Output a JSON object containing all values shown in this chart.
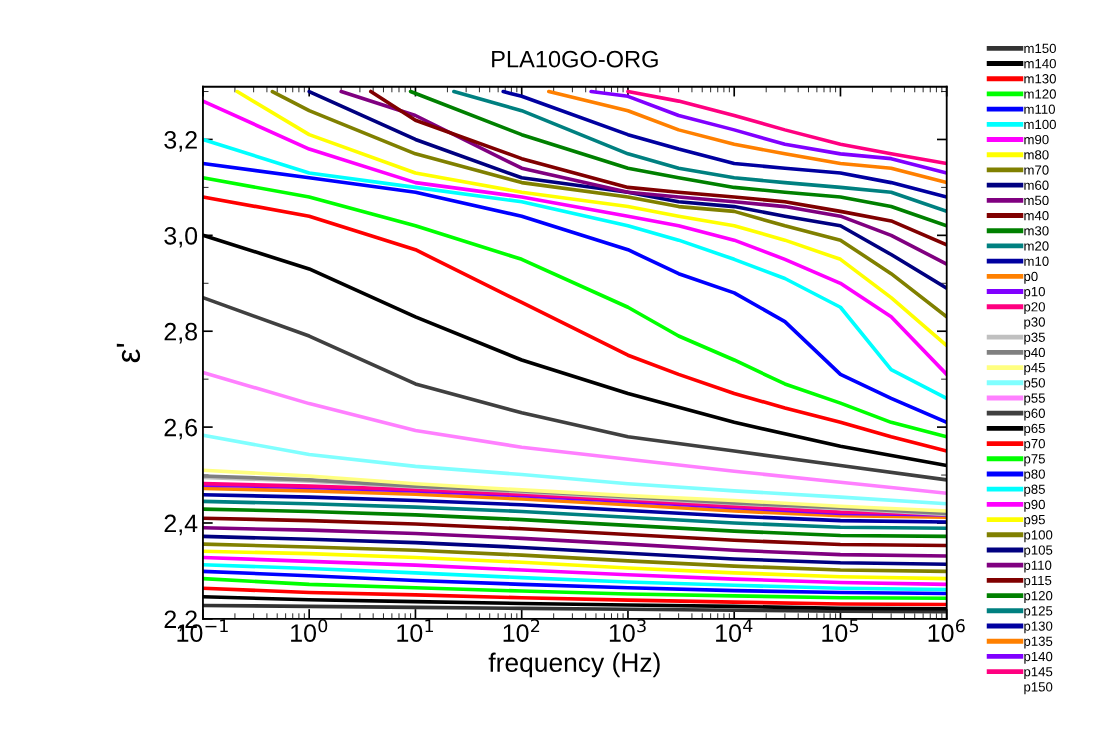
{
  "chart_data": {
    "type": "line",
    "title": "PLA10GO-ORG",
    "xlabel": "frequency (Hz)",
    "ylabel": "ε'",
    "log": "x",
    "grid": false,
    "legend": "right",
    "marker": "none",
    "line_style": "solid",
    "xlim": [
      0.1,
      1000000
    ],
    "ylim": [
      2.2,
      3.31
    ],
    "xticks": [
      {
        "value": 0.1,
        "label": "10$^{−1}$"
      },
      {
        "value": 1,
        "label": "10$^{0}$"
      },
      {
        "value": 10,
        "label": "10$^{1}$"
      },
      {
        "value": 100,
        "label": "10$^{2}$"
      },
      {
        "value": 1000,
        "label": "10$^{3}$"
      },
      {
        "value": 10000,
        "label": "10$^{4}$"
      },
      {
        "value": 100000,
        "label": "10$^{5}$"
      },
      {
        "value": 1000000,
        "label": "10$^{6}$"
      }
    ],
    "yticks": [
      {
        "value": 2.2,
        "label": "2,2"
      },
      {
        "value": 2.4,
        "label": "2,4"
      },
      {
        "value": 2.6,
        "label": "2,6"
      },
      {
        "value": 2.8,
        "label": "2,8"
      },
      {
        "value": 3.0,
        "label": "3,0"
      },
      {
        "value": 3.2,
        "label": "3,2"
      }
    ],
    "x": [
      0.1,
      1,
      10,
      100,
      1000,
      10000,
      100000,
      1000000
    ],
    "series": [
      {
        "name": "m150",
        "color": "#333333",
        "values": [
          2.228,
          2.226,
          2.224,
          2.222,
          2.22,
          2.218,
          2.216,
          2.215
        ]
      },
      {
        "name": "m140",
        "color": "#000000",
        "values": [
          2.246,
          2.24,
          2.236,
          2.232,
          2.229,
          2.226,
          2.222,
          2.221
        ]
      },
      {
        "name": "m130",
        "color": "#ff0000",
        "values": [
          2.264,
          2.255,
          2.25,
          2.244,
          2.239,
          2.235,
          2.231,
          2.23
        ]
      },
      {
        "name": "m120",
        "color": "#00ff00",
        "values": [
          2.284,
          2.272,
          2.265,
          2.258,
          2.252,
          2.248,
          2.244,
          2.243
        ]
      },
      {
        "name": "m110",
        "color": "#0000ff",
        "values": [
          2.299,
          2.29,
          2.28,
          2.272,
          2.265,
          2.259,
          2.255,
          2.253
        ]
      },
      {
        "name": "m100",
        "color": "#00ffff",
        "values": [
          2.313,
          2.305,
          2.296,
          2.286,
          2.277,
          2.27,
          2.264,
          2.261
        ]
      },
      {
        "name": "m90",
        "color": "#ff00ff",
        "values": [
          2.328,
          2.32,
          2.312,
          2.302,
          2.292,
          2.283,
          2.276,
          2.272
        ]
      },
      {
        "name": "m80",
        "color": "#ffff00",
        "values": [
          2.341,
          2.336,
          2.328,
          2.318,
          2.306,
          2.296,
          2.288,
          2.284
        ]
      },
      {
        "name": "m70",
        "color": "#808000",
        "values": [
          2.356,
          2.35,
          2.343,
          2.333,
          2.321,
          2.31,
          2.302,
          2.299
        ]
      },
      {
        "name": "m60",
        "color": "#000080",
        "values": [
          2.372,
          2.366,
          2.359,
          2.349,
          2.337,
          2.325,
          2.317,
          2.314
        ]
      },
      {
        "name": "m50",
        "color": "#800080",
        "values": [
          2.39,
          2.385,
          2.378,
          2.368,
          2.356,
          2.343,
          2.334,
          2.331
        ]
      },
      {
        "name": "m40",
        "color": "#800000",
        "values": [
          2.41,
          2.405,
          2.398,
          2.388,
          2.376,
          2.364,
          2.355,
          2.353
        ]
      },
      {
        "name": "m30",
        "color": "#008000",
        "values": [
          2.429,
          2.424,
          2.417,
          2.407,
          2.395,
          2.383,
          2.374,
          2.372
        ]
      },
      {
        "name": "m20",
        "color": "#008080",
        "values": [
          2.445,
          2.44,
          2.433,
          2.424,
          2.412,
          2.4,
          2.391,
          2.389
        ]
      },
      {
        "name": "m10",
        "color": "#0000a0",
        "values": [
          2.459,
          2.454,
          2.447,
          2.438,
          2.426,
          2.414,
          2.405,
          2.402
        ]
      },
      {
        "name": "p0",
        "color": "#ff8000",
        "values": [
          2.472,
          2.467,
          2.46,
          2.45,
          2.438,
          2.425,
          2.415,
          2.412
        ]
      },
      {
        "name": "p10",
        "color": "#8000ff",
        "values": [
          2.479,
          2.474,
          2.467,
          2.457,
          2.445,
          2.432,
          2.42,
          2.417
        ]
      },
      {
        "name": "p20",
        "color": "#ff0080",
        "values": [
          2.482,
          2.477,
          2.47,
          2.46,
          2.448,
          2.435,
          2.423,
          2.419
        ]
      },
      {
        "name": "p30",
        "values": [
          null,
          null,
          null,
          null,
          null,
          null,
          null,
          null
        ]
      },
      {
        "name": "p35",
        "color": "#c0c0c0",
        "values": [
          2.495,
          2.487,
          2.475,
          2.465,
          2.452,
          2.44,
          2.43,
          2.418
        ]
      },
      {
        "name": "p40",
        "color": "#808080",
        "values": [
          2.498,
          2.49,
          2.477,
          2.467,
          2.455,
          2.442,
          2.432,
          2.42
        ]
      },
      {
        "name": "p45",
        "color": "#ffff80",
        "values": [
          2.51,
          2.498,
          2.482,
          2.469,
          2.457,
          2.447,
          2.435,
          2.425
        ]
      },
      {
        "name": "p50",
        "color": "#80ffff",
        "values": [
          2.583,
          2.543,
          2.518,
          2.501,
          2.482,
          2.467,
          2.454,
          2.44
        ]
      },
      {
        "name": "p55",
        "color": "#ff80ff",
        "values": [
          2.714,
          2.649,
          2.593,
          2.558,
          2.533,
          2.508,
          2.485,
          2.462
        ]
      },
      {
        "name": "p60",
        "color": "#404040",
        "values": [
          2.87,
          2.79,
          2.69,
          2.63,
          2.58,
          2.55,
          2.52,
          2.49
        ]
      },
      {
        "name": "p65",
        "color": "#000000",
        "values": [
          3.0,
          2.93,
          2.83,
          2.74,
          2.67,
          2.61,
          2.56,
          2.52
        ]
      },
      {
        "name": "p70",
        "color": "#ff0000",
        "x": [
          0.1,
          1,
          10,
          100,
          1000,
          3000,
          10000,
          30000,
          100000,
          300000,
          1000000
        ],
        "values": [
          3.08,
          3.04,
          2.97,
          2.86,
          2.75,
          2.71,
          2.67,
          2.64,
          2.61,
          2.58,
          2.55
        ]
      },
      {
        "name": "p75",
        "color": "#00ff00",
        "x": [
          0.1,
          1,
          10,
          100,
          1000,
          3000,
          10000,
          30000,
          100000,
          300000,
          1000000
        ],
        "values": [
          3.12,
          3.08,
          3.02,
          2.95,
          2.85,
          2.79,
          2.74,
          2.69,
          2.65,
          2.61,
          2.58
        ]
      },
      {
        "name": "p80",
        "color": "#0000ff",
        "x": [
          0.1,
          1,
          10,
          100,
          1000,
          3000,
          10000,
          30000,
          100000,
          300000,
          1000000
        ],
        "values": [
          3.15,
          3.12,
          3.09,
          3.04,
          2.97,
          2.92,
          2.88,
          2.82,
          2.71,
          2.66,
          2.61
        ]
      },
      {
        "name": "p85",
        "color": "#00ffff",
        "x": [
          0.1,
          1,
          10,
          100,
          1000,
          3000,
          10000,
          30000,
          100000,
          300000,
          1000000
        ],
        "values": [
          3.2,
          3.13,
          3.1,
          3.07,
          3.02,
          2.99,
          2.95,
          2.91,
          2.85,
          2.72,
          2.66
        ]
      },
      {
        "name": "p90",
        "color": "#ff00ff",
        "x": [
          0.1,
          1,
          10,
          100,
          1000,
          3000,
          10000,
          30000,
          100000,
          300000,
          1000000
        ],
        "values": [
          3.28,
          3.18,
          3.11,
          3.08,
          3.04,
          3.02,
          2.99,
          2.95,
          2.9,
          2.83,
          2.71
        ]
      },
      {
        "name": "p95",
        "color": "#ffff00",
        "x": [
          0.21,
          1,
          10,
          100,
          1000,
          3000,
          10000,
          30000,
          100000,
          300000,
          1000000
        ],
        "values": [
          3.3,
          3.21,
          3.13,
          3.09,
          3.06,
          3.04,
          3.02,
          2.99,
          2.95,
          2.87,
          2.77
        ]
      },
      {
        "name": "p100",
        "color": "#808000",
        "x": [
          0.45,
          1,
          10,
          100,
          1000,
          3000,
          10000,
          30000,
          100000,
          300000,
          1000000
        ],
        "values": [
          3.3,
          3.26,
          3.17,
          3.11,
          3.08,
          3.06,
          3.05,
          3.02,
          2.99,
          2.92,
          2.83
        ]
      },
      {
        "name": "p105",
        "color": "#000080",
        "x": [
          1,
          10,
          100,
          1000,
          3000,
          10000,
          30000,
          100000,
          300000,
          1000000
        ],
        "values": [
          3.3,
          3.2,
          3.12,
          3.09,
          3.07,
          3.06,
          3.04,
          3.02,
          2.96,
          2.89
        ]
      },
      {
        "name": "p110",
        "color": "#800080",
        "x": [
          2,
          10,
          100,
          1000,
          3000,
          10000,
          30000,
          100000,
          300000,
          1000000
        ],
        "values": [
          3.3,
          3.25,
          3.14,
          3.09,
          3.08,
          3.07,
          3.06,
          3.04,
          3.0,
          2.94
        ]
      },
      {
        "name": "p115",
        "color": "#800000",
        "x": [
          3.8,
          10,
          100,
          1000,
          3000,
          10000,
          30000,
          100000,
          300000,
          1000000
        ],
        "values": [
          3.3,
          3.24,
          3.16,
          3.1,
          3.09,
          3.08,
          3.07,
          3.05,
          3.03,
          2.98
        ]
      },
      {
        "name": "p120",
        "color": "#008000",
        "x": [
          9,
          100,
          1000,
          3000,
          10000,
          30000,
          100000,
          300000,
          1000000
        ],
        "values": [
          3.3,
          3.21,
          3.14,
          3.12,
          3.1,
          3.09,
          3.08,
          3.06,
          3.02
        ]
      },
      {
        "name": "p125",
        "color": "#008080",
        "x": [
          23,
          100,
          1000,
          3000,
          10000,
          30000,
          100000,
          300000,
          1000000
        ],
        "values": [
          3.3,
          3.26,
          3.17,
          3.14,
          3.12,
          3.11,
          3.1,
          3.09,
          3.05
        ]
      },
      {
        "name": "p130",
        "color": "#0000a0",
        "x": [
          67,
          100,
          1000,
          3000,
          10000,
          30000,
          100000,
          300000,
          1000000
        ],
        "values": [
          3.3,
          3.29,
          3.21,
          3.18,
          3.15,
          3.14,
          3.13,
          3.11,
          3.08
        ]
      },
      {
        "name": "p135",
        "color": "#ff8000",
        "x": [
          180,
          1000,
          3000,
          10000,
          30000,
          100000,
          300000,
          1000000
        ],
        "values": [
          3.3,
          3.26,
          3.22,
          3.19,
          3.17,
          3.15,
          3.14,
          3.11
        ]
      },
      {
        "name": "p140",
        "color": "#8000ff",
        "x": [
          450,
          1000,
          3000,
          10000,
          30000,
          100000,
          300000,
          1000000
        ],
        "values": [
          3.3,
          3.29,
          3.25,
          3.22,
          3.19,
          3.17,
          3.16,
          3.13
        ]
      },
      {
        "name": "p145",
        "color": "#ff0080",
        "x": [
          1000,
          3000,
          10000,
          30000,
          100000,
          300000,
          1000000
        ],
        "values": [
          3.3,
          3.28,
          3.25,
          3.22,
          3.19,
          3.17,
          3.15
        ]
      },
      {
        "name": "p150",
        "values": [
          null,
          null,
          null,
          null,
          null,
          null,
          null,
          null
        ]
      }
    ]
  }
}
